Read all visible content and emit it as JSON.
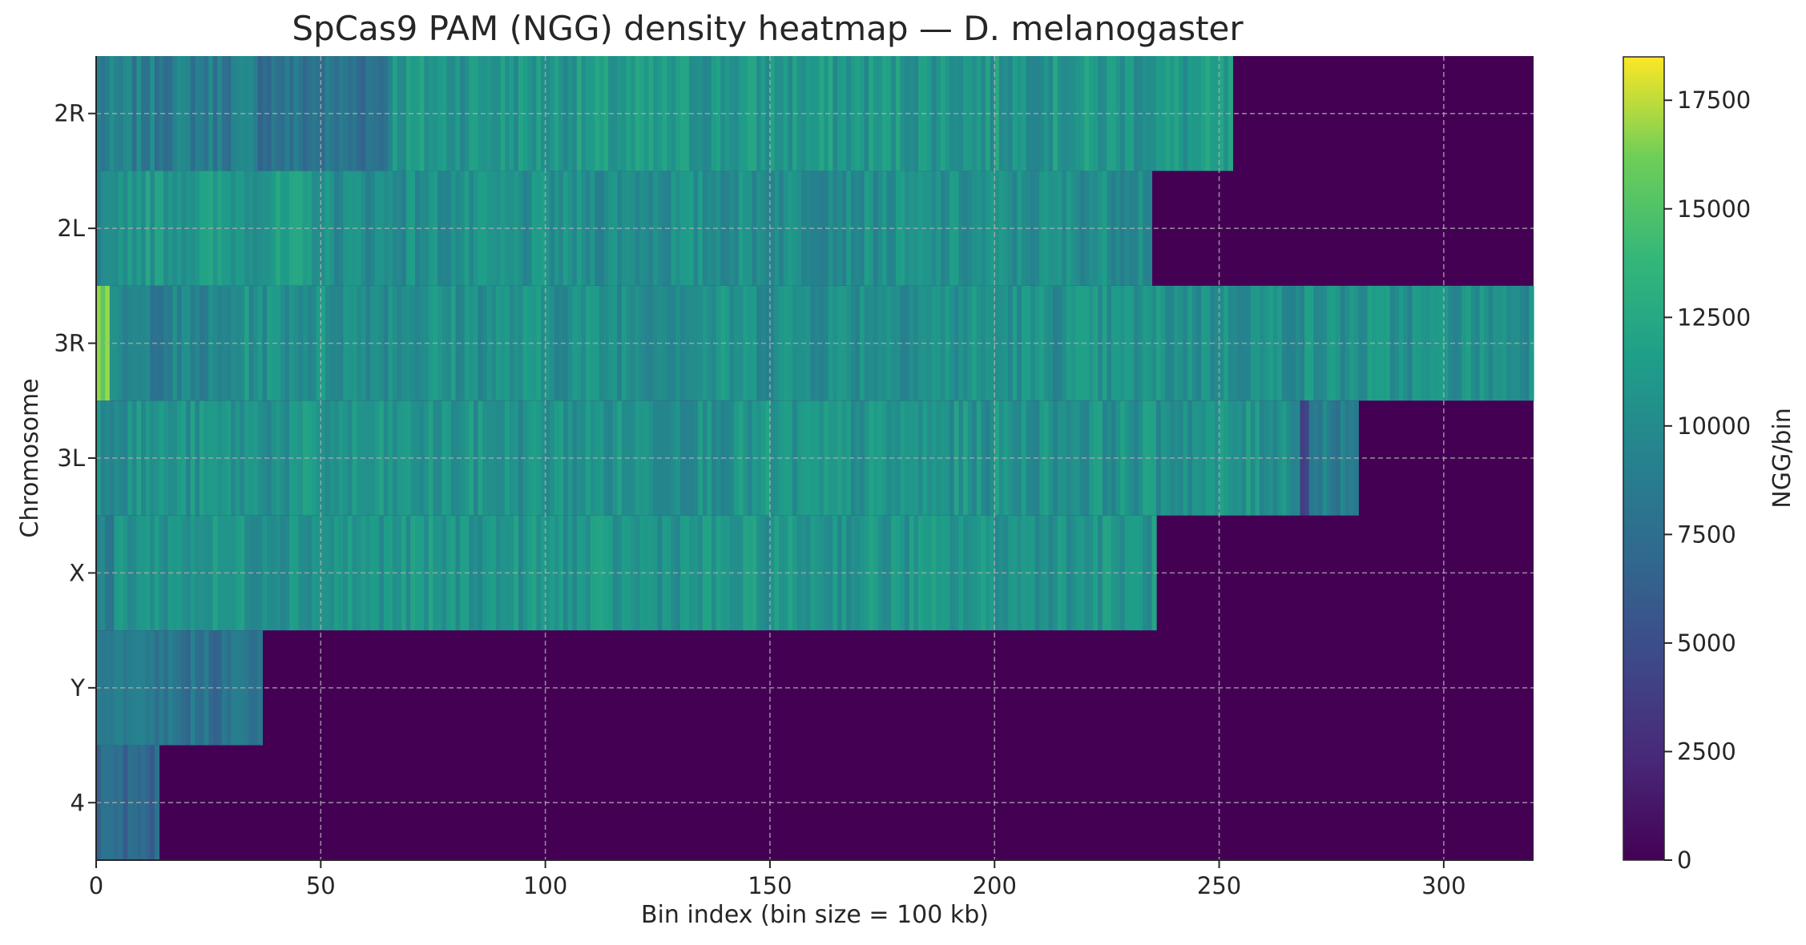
{
  "chart_data": {
    "type": "heatmap",
    "title": "SpCas9 PAM (NGG) density heatmap — D. melanogaster",
    "xlabel": "Bin index (bin size = 100 kb)",
    "ylabel": "Chromosome",
    "colorbar_label": "NGG/bin",
    "xlim": [
      0,
      320
    ],
    "x_ticks": [
      0,
      50,
      100,
      150,
      200,
      250,
      300
    ],
    "color_range": [
      0,
      18500
    ],
    "colorbar_ticks": [
      0,
      2500,
      5000,
      7500,
      10000,
      12500,
      15000,
      17500
    ],
    "colormap": "viridis",
    "grid": true,
    "rows": [
      {
        "name": "2R",
        "bins": 253,
        "typical": 10500,
        "spread": 1600,
        "segments": [
          {
            "from": 0,
            "to": 35,
            "level": 8800
          },
          {
            "from": 35,
            "to": 65,
            "level": 8000
          },
          {
            "from": 65,
            "to": 253,
            "level": 11000
          }
        ]
      },
      {
        "name": "2L",
        "bins": 235,
        "typical": 10500,
        "spread": 1400,
        "segments": [
          {
            "from": 0,
            "to": 5,
            "level": 9000
          },
          {
            "from": 5,
            "to": 50,
            "level": 11200
          },
          {
            "from": 50,
            "to": 235,
            "level": 10300
          }
        ]
      },
      {
        "name": "3R",
        "bins": 320,
        "typical": 10400,
        "spread": 1500,
        "segments": [
          {
            "from": 0,
            "to": 3,
            "level": 16500
          },
          {
            "from": 3,
            "to": 30,
            "level": 9200
          },
          {
            "from": 30,
            "to": 320,
            "level": 10500
          }
        ]
      },
      {
        "name": "3L",
        "bins": 281,
        "typical": 10500,
        "spread": 1500,
        "segments": [
          {
            "from": 0,
            "to": 268,
            "level": 10600
          },
          {
            "from": 268,
            "to": 270,
            "level": 4000
          },
          {
            "from": 270,
            "to": 281,
            "level": 9000
          }
        ]
      },
      {
        "name": "X",
        "bins": 236,
        "typical": 10800,
        "spread": 1400,
        "segments": [
          {
            "from": 0,
            "to": 4,
            "level": 8500
          },
          {
            "from": 4,
            "to": 236,
            "level": 10800
          }
        ]
      },
      {
        "name": "Y",
        "bins": 37,
        "typical": 8000,
        "spread": 1500,
        "segments": [
          {
            "from": 0,
            "to": 37,
            "level": 8000
          }
        ]
      },
      {
        "name": "4",
        "bins": 14,
        "typical": 7000,
        "spread": 1400,
        "segments": [
          {
            "from": 0,
            "to": 14,
            "level": 7000
          }
        ]
      }
    ]
  }
}
